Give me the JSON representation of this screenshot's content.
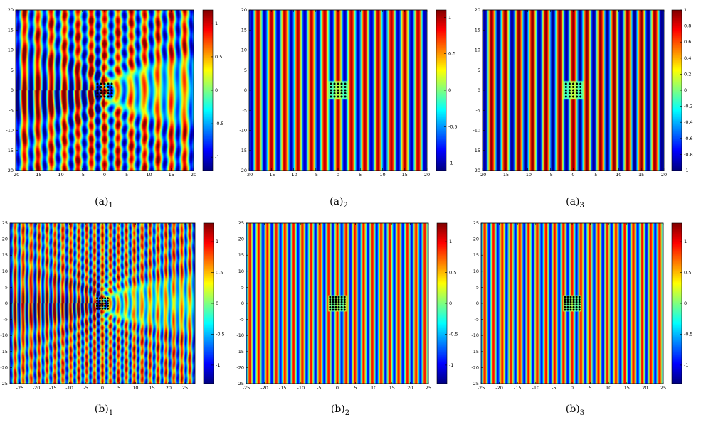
{
  "figure": {
    "panels": [
      {
        "id": "a1",
        "caption": "(a)",
        "subscript": "1"
      },
      {
        "id": "a2",
        "caption": "(a)",
        "subscript": "2"
      },
      {
        "id": "a3",
        "caption": "(a)",
        "subscript": "3"
      },
      {
        "id": "b1",
        "caption": "(b)",
        "subscript": "1"
      },
      {
        "id": "b2",
        "caption": "(b)",
        "subscript": "2"
      },
      {
        "id": "b3",
        "caption": "(b)",
        "subscript": "3"
      }
    ]
  },
  "colormap": {
    "name": "jet",
    "stops": [
      "#00007f",
      "#0000ff",
      "#007fff",
      "#00ffff",
      "#7fff7f",
      "#ffff00",
      "#ff7f00",
      "#ff0000",
      "#7f0000"
    ]
  },
  "chart_data": [
    {
      "id": "a1",
      "type": "heatmap",
      "title": "",
      "xlabel": "",
      "ylabel": "",
      "xlim": [
        -20,
        20
      ],
      "ylim": [
        -20,
        20
      ],
      "xticks": [
        "-20",
        "-15",
        "-10",
        "-5",
        "0",
        "5",
        "10",
        "15",
        "20"
      ],
      "yticks": [
        "20",
        "15",
        "10",
        "5",
        "0",
        "-5",
        "-10",
        "-15",
        "-20"
      ],
      "colorbar": {
        "range": [
          -1.2,
          1.2
        ],
        "ticks": [
          "1",
          "0.5",
          "0",
          "-0.5",
          "-1"
        ]
      },
      "field": "scattered total field with shadow region",
      "wavelength": 3.0,
      "scatterer": {
        "x": [
          -1.6,
          1.6
        ],
        "y": [
          -1.6,
          1.6
        ],
        "grid": 5
      },
      "scattering": "strong"
    },
    {
      "id": "a2",
      "type": "heatmap",
      "title": "",
      "xlabel": "",
      "ylabel": "",
      "xlim": [
        -20,
        20
      ],
      "ylim": [
        -20,
        20
      ],
      "xticks": [
        "-20",
        "-15",
        "-10",
        "-5",
        "0",
        "5",
        "10",
        "15",
        "20"
      ],
      "yticks": [
        "20",
        "15",
        "10",
        "5",
        "0",
        "-5",
        "-10",
        "-15",
        "-20"
      ],
      "colorbar": {
        "range": [
          -1.1,
          1.1
        ],
        "ticks": [
          "1",
          "0.5",
          "0",
          "-0.5",
          "-1"
        ]
      },
      "field": "cloaked plane wave",
      "wavelength": 3.0,
      "scatterer": {
        "x": [
          -1.6,
          1.6
        ],
        "y": [
          -1.6,
          1.6
        ],
        "grid": 5
      },
      "scattering": "none"
    },
    {
      "id": "a3",
      "type": "heatmap",
      "title": "",
      "xlabel": "",
      "ylabel": "",
      "xlim": [
        -20,
        20
      ],
      "ylim": [
        -20,
        20
      ],
      "xticks": [
        "-20",
        "-15",
        "-10",
        "-5",
        "0",
        "5",
        "10",
        "15",
        "20"
      ],
      "yticks": [
        "20",
        "15",
        "10",
        "5",
        "0",
        "-5",
        "-10",
        "-15",
        "-20"
      ],
      "colorbar": {
        "range": [
          -1.0,
          1.0
        ],
        "ticks": [
          "1",
          "0.8",
          "0.6",
          "0.4",
          "0.2",
          "0",
          "-0.2",
          "-0.4",
          "-0.6",
          "-0.8",
          "-1"
        ]
      },
      "field": "cloaked plane wave",
      "wavelength": 3.0,
      "scatterer": {
        "x": [
          -1.6,
          1.6
        ],
        "y": [
          -1.6,
          1.6
        ],
        "grid": 5
      },
      "scattering": "none"
    },
    {
      "id": "b1",
      "type": "heatmap",
      "title": "",
      "xlabel": "",
      "ylabel": "",
      "xlim": [
        -28,
        28
      ],
      "ylim": [
        -25,
        25
      ],
      "xticks": [
        "-25",
        "-20",
        "-15",
        "-10",
        "-5",
        "0",
        "5",
        "10",
        "15",
        "20",
        "25"
      ],
      "yticks": [
        "25",
        "20",
        "15",
        "10",
        "5",
        "0",
        "-5",
        "-10",
        "-15",
        "-20",
        "-25"
      ],
      "colorbar": {
        "range": [
          -1.3,
          1.3
        ],
        "ticks": [
          "1",
          "0.5",
          "0",
          "-0.5",
          "-1"
        ]
      },
      "field": "scattered total field with shadow region",
      "wavelength": 2.4,
      "scatterer": {
        "x": [
          -1.6,
          1.6
        ],
        "y": [
          -1.6,
          1.6
        ],
        "grid": 5
      },
      "scattering": "strong"
    },
    {
      "id": "b2",
      "type": "heatmap",
      "title": "",
      "xlabel": "",
      "ylabel": "",
      "xlim": [
        -25,
        25
      ],
      "ylim": [
        -25,
        25
      ],
      "xticks": [
        "-25",
        "-20",
        "-15",
        "-10",
        "-5",
        "0",
        "5",
        "10",
        "15",
        "20",
        "25"
      ],
      "yticks": [
        "25",
        "20",
        "15",
        "10",
        "5",
        "0",
        "-5",
        "-10",
        "-15",
        "-20",
        "-25"
      ],
      "colorbar": {
        "range": [
          -1.3,
          1.3
        ],
        "ticks": [
          "1",
          "0.5",
          "0",
          "-0.5",
          "-1"
        ]
      },
      "field": "cloaked plane wave",
      "wavelength": 2.4,
      "scatterer": {
        "x": [
          -2.0,
          2.0
        ],
        "y": [
          -2.0,
          2.0
        ],
        "grid": 6
      },
      "scattering": "none"
    },
    {
      "id": "b3",
      "type": "heatmap",
      "title": "",
      "xlabel": "",
      "ylabel": "",
      "xlim": [
        -25,
        25
      ],
      "ylim": [
        -25,
        25
      ],
      "xticks": [
        "-25",
        "-20",
        "-15",
        "-10",
        "-5",
        "0",
        "5",
        "10",
        "15",
        "20",
        "25"
      ],
      "yticks": [
        "25",
        "20",
        "15",
        "10",
        "5",
        "0",
        "-5",
        "-10",
        "-15",
        "-20",
        "-25"
      ],
      "colorbar": {
        "range": [
          -1.3,
          1.3
        ],
        "ticks": [
          "1",
          "0.5",
          "0",
          "-0.5",
          "-1"
        ]
      },
      "field": "cloaked plane wave",
      "wavelength": 2.4,
      "scatterer": {
        "x": [
          -2.0,
          2.0
        ],
        "y": [
          -2.0,
          2.0
        ],
        "grid": 6
      },
      "scattering": "none"
    }
  ]
}
